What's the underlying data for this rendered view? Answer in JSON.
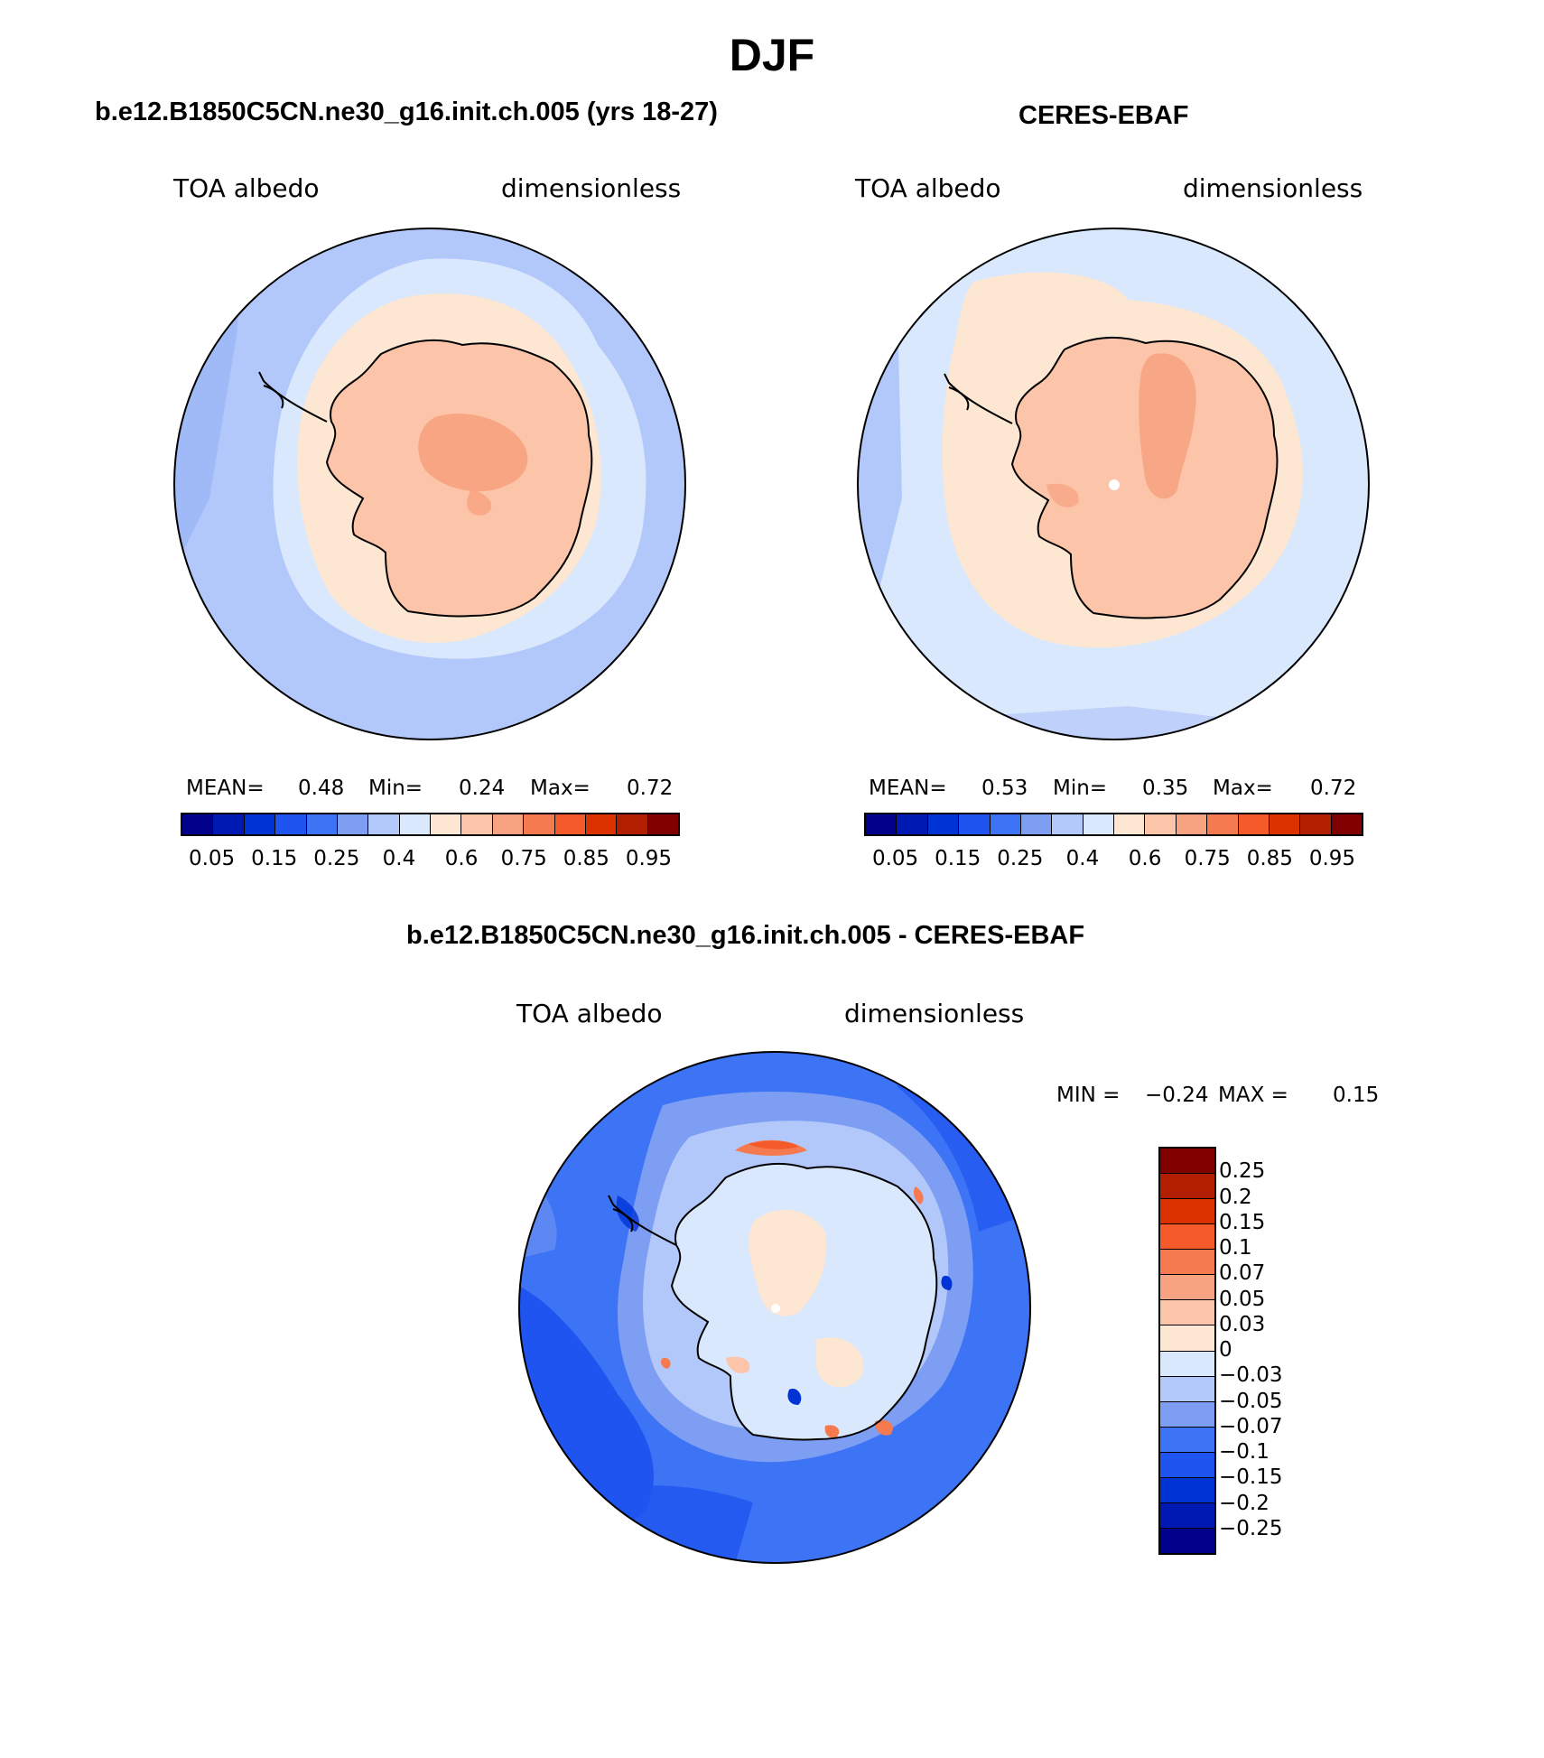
{
  "title": "DJF",
  "colors": {
    "abs_scale": [
      "#00008a",
      "#0019b2",
      "#0033d6",
      "#1f54f0",
      "#3d73f5",
      "#7d9ef2",
      "#b3c8fa",
      "#d9e8fc",
      "#fde6d2",
      "#fcc4a8",
      "#f7a280",
      "#f57a4f",
      "#f55a2b",
      "#dc3200",
      "#b21e00",
      "#800000"
    ],
    "diff_scale": [
      "#800000",
      "#b21e00",
      "#dc3200",
      "#f55a2b",
      "#f57a4f",
      "#f7a280",
      "#fcc4a8",
      "#fde6d2",
      "#d9e8fc",
      "#b3c8fa",
      "#7d9ef2",
      "#3d73f5",
      "#1f54f0",
      "#0033d6",
      "#0019b2",
      "#00008a"
    ]
  },
  "panel_left": {
    "title": "b.e12.B1850C5CN.ne30_g16.init.ch.005 (yrs 18-27)",
    "variable": "TOA albedo",
    "units": "dimensionless",
    "stats": {
      "mean_label": "MEAN=",
      "mean": "0.48",
      "min_label": "Min=",
      "min": "0.24",
      "max_label": "Max=",
      "max": "0.72"
    },
    "colorbar_labels": [
      "0.05",
      "0.15",
      "0.25",
      "0.4",
      "0.6",
      "0.75",
      "0.85",
      "0.95"
    ]
  },
  "panel_right": {
    "title": "CERES-EBAF",
    "variable": "TOA albedo",
    "units": "dimensionless",
    "stats": {
      "mean_label": "MEAN=",
      "mean": "0.53",
      "min_label": "Min=",
      "min": "0.35",
      "max_label": "Max=",
      "max": "0.72"
    },
    "colorbar_labels": [
      "0.05",
      "0.15",
      "0.25",
      "0.4",
      "0.6",
      "0.75",
      "0.85",
      "0.95"
    ]
  },
  "panel_diff": {
    "title": "b.e12.B1850C5CN.ne30_g16.init.ch.005 - CERES-EBAF",
    "variable": "TOA albedo",
    "units": "dimensionless",
    "stats": {
      "min_label": "MIN =",
      "min": "−0.24",
      "max_label": "MAX =",
      "max": "0.15"
    },
    "colorbar_labels": [
      "0.25",
      "0.2",
      "0.15",
      "0.1",
      "0.07",
      "0.05",
      "0.03",
      "0",
      "−0.03",
      "−0.05",
      "−0.07",
      "−0.1",
      "−0.15",
      "−0.2",
      "−0.25"
    ]
  }
}
